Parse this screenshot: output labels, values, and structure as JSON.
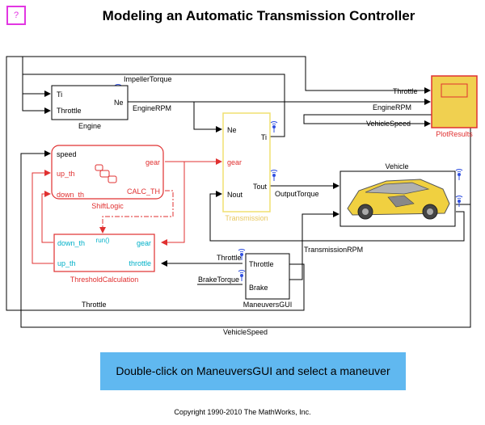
{
  "help_icon": {
    "icon": "help-question-icon",
    "glyph": "?"
  },
  "title": "Modeling an Automatic Transmission Controller",
  "blocks": {
    "engine": {
      "name": "Engine",
      "ports_in": [
        "Ti",
        "Throttle"
      ],
      "ports_out": [
        "Ne"
      ]
    },
    "shift_logic": {
      "name": "ShiftLogic",
      "ports_in": [
        "speed",
        "up_th",
        "down_th"
      ],
      "ports_out": [
        "gear",
        "CALC_TH"
      ]
    },
    "threshold": {
      "name": "ThresholdCalculation",
      "trigger": "run()",
      "ports_in": [
        "down_th",
        "up_th"
      ],
      "ports_out": [
        "gear",
        "throttle"
      ]
    },
    "transmission": {
      "name": "Transmission",
      "ports_in": [
        "Ne",
        "gear",
        "Nout"
      ],
      "ports_out": [
        "Ti",
        "Tout"
      ]
    },
    "vehicle": {
      "name": "Vehicle"
    },
    "maneuvers": {
      "name": "ManeuversGUI",
      "ports_out": [
        "Throttle",
        "Brake"
      ]
    },
    "plot": {
      "name": "PlotResults"
    }
  },
  "signals": {
    "impeller_torque": "ImpellerTorque",
    "engine_rpm": "EngineRPM",
    "throttle": "Throttle",
    "vehicle_speed": "VehicleSpeed",
    "output_torque": "OutputTorque",
    "transmission_rpm": "TransmissionRPM",
    "brake_torque": "BrakeTorque"
  },
  "colors": {
    "stateflow": "#e03030",
    "cyan_port": "#00b0c8",
    "transmission_border": "#f0e070",
    "transmission_label": "#e8c860",
    "scope_fill": "#f0d050",
    "scope_border": "#e03030",
    "signal_icon": "#3050e0",
    "cta_bg": "#60b8f0"
  },
  "cta": "Double-click on ManeuversGUI and select a maneuver",
  "copyright": "Copyright 1990-2010 The MathWorks, Inc."
}
